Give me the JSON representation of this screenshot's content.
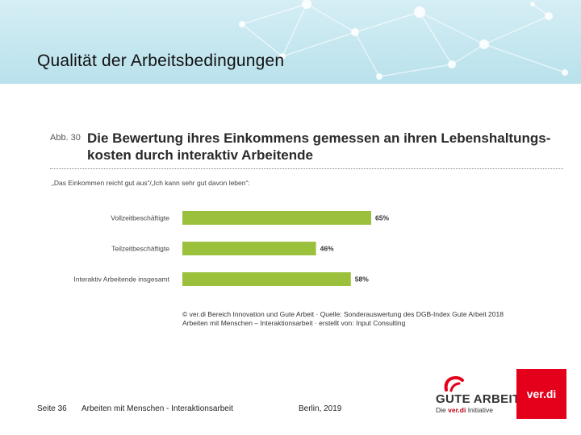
{
  "slide": {
    "title": "Qualität der Arbeitsbedingungen"
  },
  "figure": {
    "label": "Abb. 30",
    "title": "Die Bewertung ihres Einkommens gemessen an ihren Lebenshaltungs- kosten durch interaktiv Arbeitende",
    "subtitle": "„Das Einkommen reicht gut aus“/„Ich kann sehr gut davon leben“:",
    "source_line1": "© ver.di Bereich Innovation und Gute Arbeit · Quelle: Sonderauswertung des DGB-Index Gute Arbeit 2018",
    "source_line2": "Arbeiten mit Menschen – Interaktionsarbeit · erstellt von: Input Consulting"
  },
  "chart_data": {
    "type": "bar",
    "orientation": "horizontal",
    "categories": [
      "Vollzeitbeschäftigte",
      "Teilzeitbeschäftigte",
      "Interaktiv Arbeitende insgesamt"
    ],
    "values": [
      65,
      46,
      58
    ],
    "value_labels": [
      "65%",
      "46%",
      "58%"
    ],
    "xlim": [
      0,
      100
    ],
    "bar_color": "#9bc13c",
    "grid": false,
    "legend": false
  },
  "footer": {
    "page": "Seite 36",
    "document": "Arbeiten mit Menschen - Interaktionsarbeit",
    "place_year": "Berlin, 2019"
  },
  "logos": {
    "gute_arbeit": "GUTE ARBEIT",
    "gute_arbeit_sub_prefix": "Die",
    "gute_arbeit_sub_brand": "ver.di",
    "gute_arbeit_sub_suffix": "Initiative",
    "verdi": "ver.di"
  },
  "colors": {
    "accent_red": "#e4001b",
    "bar_green": "#9bc13c",
    "header_band": "#c4e6ef"
  }
}
